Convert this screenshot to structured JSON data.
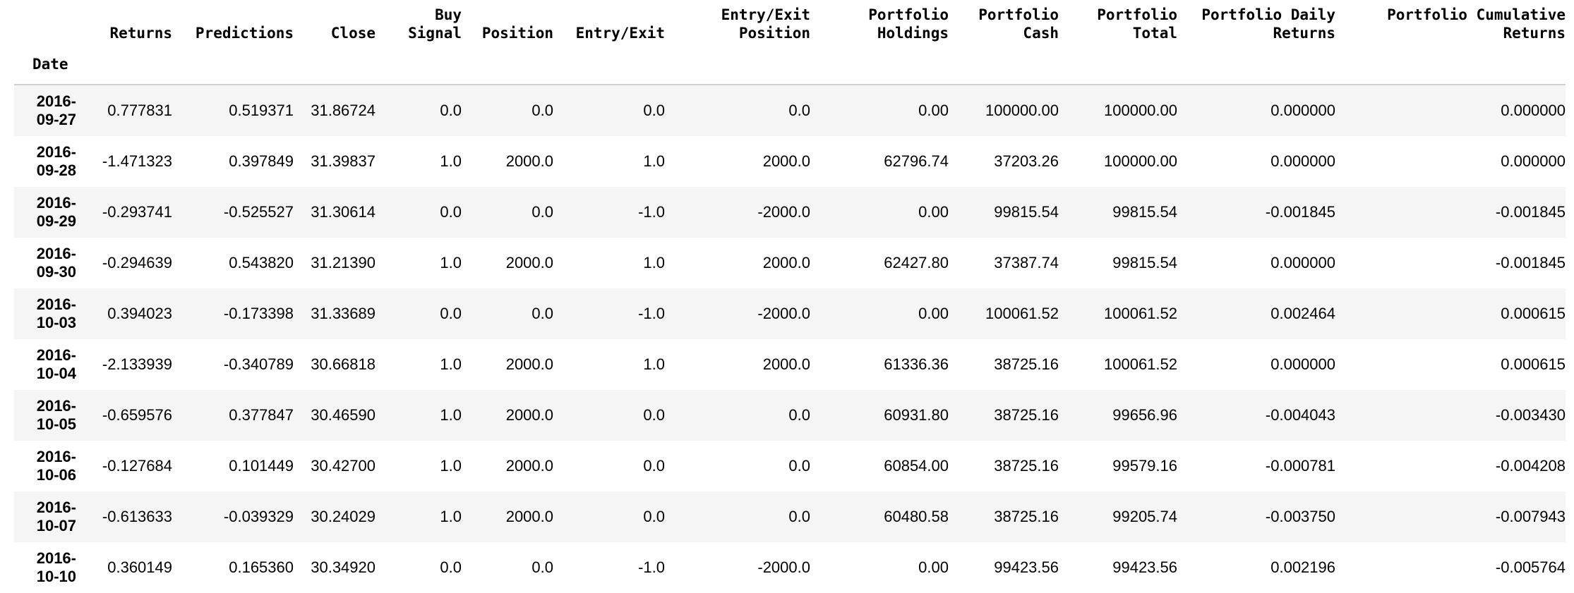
{
  "table": {
    "index_name": "Date",
    "columns": [
      [
        "Returns"
      ],
      [
        "Predictions"
      ],
      [
        "Close"
      ],
      [
        "Buy",
        "Signal"
      ],
      [
        "Position"
      ],
      [
        "Entry/Exit"
      ],
      [
        "Entry/Exit",
        "Position"
      ],
      [
        "Portfolio",
        "Holdings"
      ],
      [
        "Portfolio",
        "Cash"
      ],
      [
        "Portfolio",
        "Total"
      ],
      [
        "Portfolio Daily",
        "Returns"
      ],
      [
        "Portfolio Cumulative",
        "Returns"
      ]
    ],
    "rows": [
      {
        "date": [
          "2016-",
          "09-27"
        ],
        "values": [
          "0.777831",
          "0.519371",
          "31.86724",
          "0.0",
          "0.0",
          "0.0",
          "0.0",
          "0.00",
          "100000.00",
          "100000.00",
          "0.000000",
          "0.000000"
        ]
      },
      {
        "date": [
          "2016-",
          "09-28"
        ],
        "values": [
          "-1.471323",
          "0.397849",
          "31.39837",
          "1.0",
          "2000.0",
          "1.0",
          "2000.0",
          "62796.74",
          "37203.26",
          "100000.00",
          "0.000000",
          "0.000000"
        ]
      },
      {
        "date": [
          "2016-",
          "09-29"
        ],
        "values": [
          "-0.293741",
          "-0.525527",
          "31.30614",
          "0.0",
          "0.0",
          "-1.0",
          "-2000.0",
          "0.00",
          "99815.54",
          "99815.54",
          "-0.001845",
          "-0.001845"
        ]
      },
      {
        "date": [
          "2016-",
          "09-30"
        ],
        "values": [
          "-0.294639",
          "0.543820",
          "31.21390",
          "1.0",
          "2000.0",
          "1.0",
          "2000.0",
          "62427.80",
          "37387.74",
          "99815.54",
          "0.000000",
          "-0.001845"
        ]
      },
      {
        "date": [
          "2016-",
          "10-03"
        ],
        "values": [
          "0.394023",
          "-0.173398",
          "31.33689",
          "0.0",
          "0.0",
          "-1.0",
          "-2000.0",
          "0.00",
          "100061.52",
          "100061.52",
          "0.002464",
          "0.000615"
        ]
      },
      {
        "date": [
          "2016-",
          "10-04"
        ],
        "values": [
          "-2.133939",
          "-0.340789",
          "30.66818",
          "1.0",
          "2000.0",
          "1.0",
          "2000.0",
          "61336.36",
          "38725.16",
          "100061.52",
          "0.000000",
          "0.000615"
        ]
      },
      {
        "date": [
          "2016-",
          "10-05"
        ],
        "values": [
          "-0.659576",
          "0.377847",
          "30.46590",
          "1.0",
          "2000.0",
          "0.0",
          "0.0",
          "60931.80",
          "38725.16",
          "99656.96",
          "-0.004043",
          "-0.003430"
        ]
      },
      {
        "date": [
          "2016-",
          "10-06"
        ],
        "values": [
          "-0.127684",
          "0.101449",
          "30.42700",
          "1.0",
          "2000.0",
          "0.0",
          "0.0",
          "60854.00",
          "38725.16",
          "99579.16",
          "-0.000781",
          "-0.004208"
        ]
      },
      {
        "date": [
          "2016-",
          "10-07"
        ],
        "values": [
          "-0.613633",
          "-0.039329",
          "30.24029",
          "1.0",
          "2000.0",
          "0.0",
          "0.0",
          "60480.58",
          "38725.16",
          "99205.74",
          "-0.003750",
          "-0.007943"
        ]
      },
      {
        "date": [
          "2016-",
          "10-10"
        ],
        "values": [
          "0.360149",
          "0.165360",
          "30.34920",
          "0.0",
          "0.0",
          "-1.0",
          "-2000.0",
          "0.00",
          "99423.56",
          "99423.56",
          "0.002196",
          "-0.005764"
        ]
      }
    ]
  }
}
